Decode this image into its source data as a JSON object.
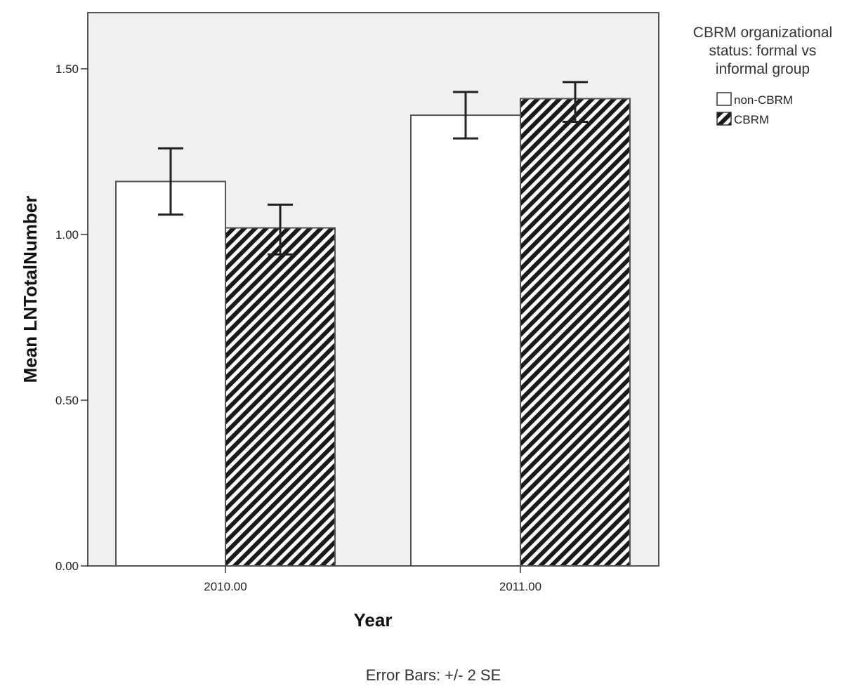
{
  "chart_data": {
    "type": "bar",
    "xlabel": "Year",
    "ylabel": "Mean LNTotalNumber",
    "categories": [
      "2010.00",
      "2011.00"
    ],
    "ylim": [
      0,
      1.5
    ],
    "yticks": [
      "0.00",
      "0.50",
      "1.00",
      "1.50"
    ],
    "series": [
      {
        "name": "non-CBRM",
        "values": [
          1.16,
          1.36
        ],
        "error_low": [
          1.06,
          1.29
        ],
        "error_high": [
          1.26,
          1.43
        ],
        "fill": "#ffffff"
      },
      {
        "name": "CBRM",
        "values": [
          1.02,
          1.41
        ],
        "error_low": [
          0.94,
          1.34
        ],
        "error_high": [
          1.09,
          1.46
        ],
        "fill": "hatch"
      }
    ],
    "legend": {
      "title_lines": [
        "CBRM organizational",
        "status: formal vs",
        "informal group"
      ],
      "position": "top-right"
    },
    "footnote": "Error Bars: +/- 2 SE",
    "grid": false,
    "plot_background": "#f0f0f0"
  }
}
